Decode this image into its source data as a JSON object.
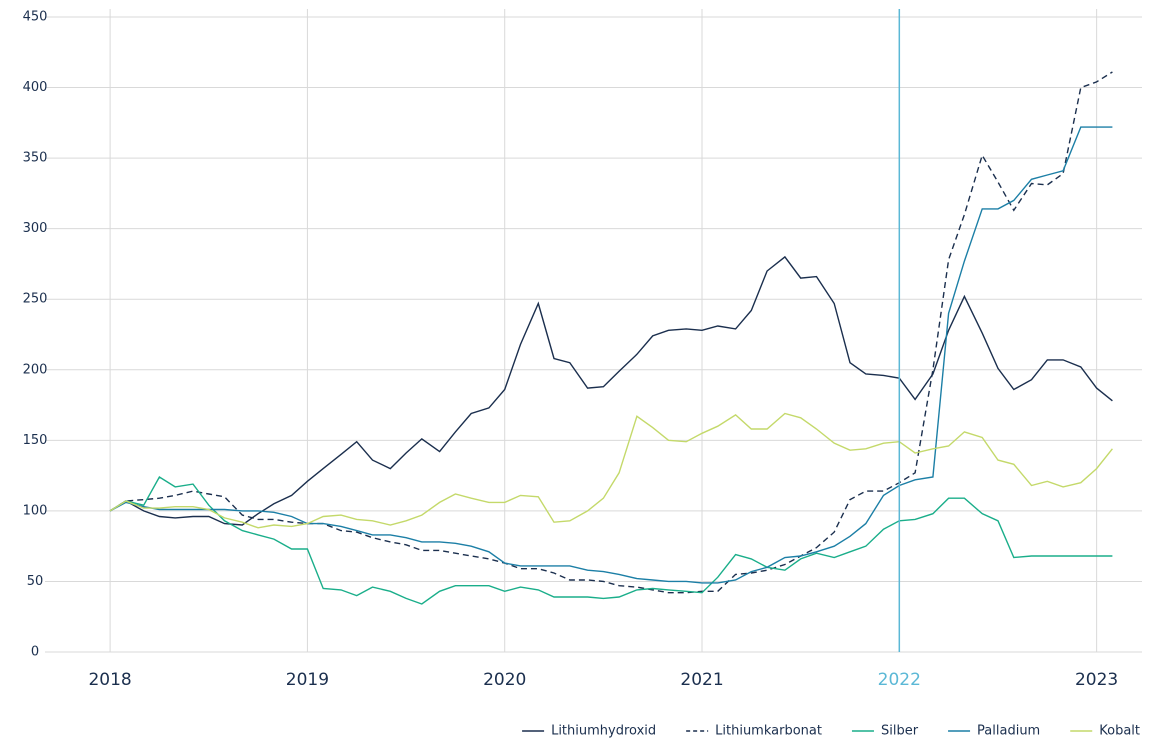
{
  "chart_data": {
    "type": "line",
    "x": [
      2018,
      2018.08,
      2018.17,
      2018.25,
      2018.33,
      2018.42,
      2018.5,
      2018.58,
      2018.67,
      2018.75,
      2018.83,
      2018.92,
      2019,
      2019.08,
      2019.17,
      2019.25,
      2019.33,
      2019.42,
      2019.5,
      2019.58,
      2019.67,
      2019.75,
      2019.83,
      2019.92,
      2020,
      2020.08,
      2020.17,
      2020.25,
      2020.33,
      2020.42,
      2020.5,
      2020.58,
      2020.67,
      2020.75,
      2020.83,
      2020.92,
      2021,
      2021.08,
      2021.17,
      2021.25,
      2021.33,
      2021.42,
      2021.5,
      2021.58,
      2021.67,
      2021.75,
      2021.83,
      2021.92,
      2022,
      2022.08,
      2022.17,
      2022.25,
      2022.33,
      2022.42,
      2022.5,
      2022.58,
      2022.67,
      2022.75,
      2022.83,
      2022.92,
      2023,
      2023.08
    ],
    "series": [
      {
        "name": "Lithiumhydroxid",
        "color": "#1b2f4e",
        "dashed": false,
        "values": [
          100,
          107,
          100,
          96,
          95,
          96,
          96,
          91,
          90,
          98,
          105,
          111,
          121,
          130,
          140,
          149,
          136,
          130,
          141,
          151,
          142,
          156,
          169,
          173,
          186,
          218,
          247,
          208,
          205,
          187,
          188,
          199,
          211,
          224,
          228,
          229,
          228,
          231,
          229,
          242,
          270,
          280,
          265,
          266,
          247,
          205,
          197,
          196,
          194,
          179,
          197,
          228,
          252,
          226,
          201,
          186,
          193,
          207,
          207,
          202,
          187,
          178
        ]
      },
      {
        "name": "Lithiumkarbonat",
        "color": "#1b2f4e",
        "dashed": true,
        "values": [
          100,
          107,
          108,
          109,
          111,
          114,
          112,
          110,
          97,
          94,
          94,
          92,
          91,
          91,
          86,
          85,
          81,
          78,
          76,
          72,
          72,
          70,
          68,
          66,
          63,
          59,
          59,
          56,
          51,
          51,
          50,
          47,
          46,
          44,
          42,
          42,
          43,
          43,
          55,
          56,
          58,
          62,
          68,
          74,
          85,
          108,
          114,
          114,
          120,
          127,
          200,
          278,
          310,
          352,
          333,
          313,
          332,
          331,
          339,
          400,
          404,
          411
        ]
      },
      {
        "name": "Silber",
        "color": "#1aae8a",
        "dashed": false,
        "values": [
          100,
          107,
          104,
          124,
          117,
          119,
          104,
          93,
          86,
          83,
          80,
          73,
          73,
          45,
          44,
          40,
          46,
          43,
          38,
          34,
          43,
          47,
          47,
          47,
          43,
          46,
          44,
          39,
          39,
          39,
          38,
          39,
          44,
          45,
          44,
          43,
          42,
          53,
          69,
          66,
          60,
          58,
          66,
          70,
          67,
          71,
          75,
          87,
          93,
          94,
          98,
          109,
          109,
          98,
          93,
          67,
          68,
          68,
          68,
          68,
          68,
          68
        ]
      },
      {
        "name": "Palladium",
        "color": "#1c7fa6",
        "dashed": false,
        "values": [
          100,
          106,
          103,
          101,
          101,
          101,
          101,
          101,
          100,
          100,
          99,
          96,
          91,
          91,
          89,
          86,
          83,
          83,
          81,
          78,
          78,
          77,
          75,
          71,
          63,
          61,
          61,
          61,
          61,
          58,
          57,
          55,
          52,
          51,
          50,
          50,
          49,
          49,
          51,
          57,
          60,
          67,
          68,
          71,
          75,
          82,
          91,
          111,
          118,
          122,
          124,
          240,
          277,
          314,
          314,
          320,
          335,
          338,
          341,
          372,
          372,
          372
        ]
      },
      {
        "name": "Kobalt",
        "color": "#c4d96a",
        "dashed": false,
        "values": [
          100,
          107,
          102,
          102,
          103,
          103,
          101,
          95,
          92,
          88,
          90,
          89,
          91,
          96,
          97,
          94,
          93,
          90,
          93,
          97,
          106,
          112,
          109,
          106,
          106,
          111,
          110,
          92,
          93,
          100,
          109,
          127,
          167,
          159,
          150,
          149,
          155,
          160,
          168,
          158,
          158,
          169,
          166,
          158,
          148,
          143,
          144,
          148,
          149,
          141,
          144,
          146,
          156,
          152,
          136,
          133,
          118,
          121,
          117,
          120,
          130,
          144
        ]
      }
    ],
    "xlim": [
      2017.67,
      2023.23
    ],
    "xticks": [
      2018,
      2019,
      2020,
      2021,
      2022,
      2023
    ],
    "ylim": [
      0,
      450
    ],
    "yticks": [
      0,
      50,
      100,
      150,
      200,
      250,
      300,
      350,
      400,
      450
    ],
    "grid": true,
    "highlight_x": {
      "value": 2022,
      "color": "#5bb8d6"
    },
    "legend": "bottom-right"
  }
}
